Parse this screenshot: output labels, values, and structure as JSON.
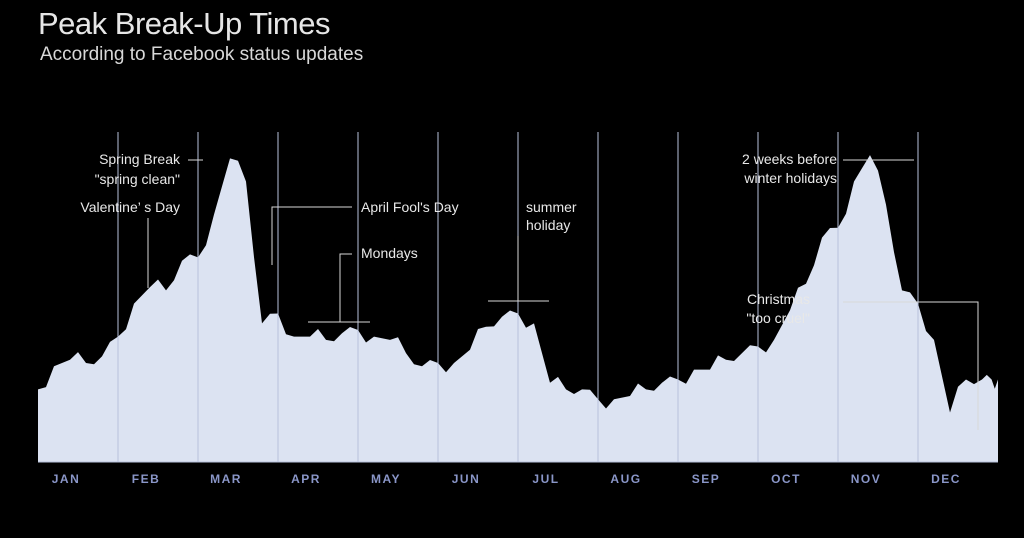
{
  "chart_data": {
    "type": "area",
    "title": "Peak Break-Up Times",
    "subtitle": "According to Facebook status updates",
    "xlabel": "",
    "ylabel": "",
    "grid": false,
    "legend": "none",
    "categories": [
      "JAN",
      "FEB",
      "MAR",
      "APR",
      "MAY",
      "JUN",
      "JUL",
      "AUG",
      "SEP",
      "OCT",
      "NOV",
      "DEC"
    ],
    "ylim": [
      0,
      100
    ],
    "x": [
      0,
      0.2,
      0.4,
      0.6,
      0.8,
      1.0,
      1.2,
      1.4,
      1.6,
      1.8,
      2.0,
      2.2,
      2.4,
      2.6,
      2.8,
      3.0,
      3.2,
      3.4,
      3.6,
      3.8,
      4.0,
      4.2,
      4.4,
      4.6,
      4.8,
      5.0,
      5.2,
      5.4,
      5.6,
      5.8,
      6.0,
      6.2,
      6.4,
      6.6,
      6.8,
      7.0,
      7.2,
      7.4,
      7.6,
      7.8,
      8.0,
      8.2,
      8.4,
      8.6,
      8.8,
      9.0,
      9.2,
      9.4,
      9.6,
      9.8,
      10.0,
      10.2,
      10.4,
      10.6,
      10.8,
      11.0,
      11.2,
      11.4,
      11.6,
      11.8,
      11.92,
      12.0
    ],
    "values": [
      22,
      29,
      31,
      30,
      32,
      38,
      48,
      53,
      52,
      61,
      62,
      75,
      92,
      85,
      42,
      45,
      38,
      38,
      37,
      39,
      40,
      38,
      37,
      33,
      29,
      30,
      30,
      34,
      41,
      44,
      45,
      42,
      24,
      22,
      22,
      19,
      19,
      20,
      22,
      24,
      25,
      28,
      28,
      31,
      33,
      35,
      37,
      46,
      54,
      68,
      71,
      85,
      93,
      78,
      52,
      48,
      37,
      15,
      25,
      25,
      25,
      25
    ],
    "series": [
      {
        "values_note": ""
      }
    ],
    "annotations": [
      {
        "id": "valentines",
        "text": [
          "Valentine’ s Day"
        ]
      },
      {
        "id": "spring-break",
        "text": [
          "Spring Break",
          "\"spring clean\""
        ]
      },
      {
        "id": "april-fools",
        "text": [
          "April Fool's Day"
        ]
      },
      {
        "id": "mondays",
        "text": [
          "Mondays"
        ]
      },
      {
        "id": "summer",
        "text": [
          "summer",
          "holiday"
        ]
      },
      {
        "id": "winter",
        "text": [
          "2 weeks before",
          "winter holidays"
        ]
      },
      {
        "id": "christmas",
        "text": [
          "Christmas",
          "\"too cruel\""
        ]
      }
    ],
    "colors": {
      "fill": "#dce3f2",
      "divider": "#b8c2dc",
      "month_label": "#8a96c8",
      "background": "#000000"
    }
  }
}
